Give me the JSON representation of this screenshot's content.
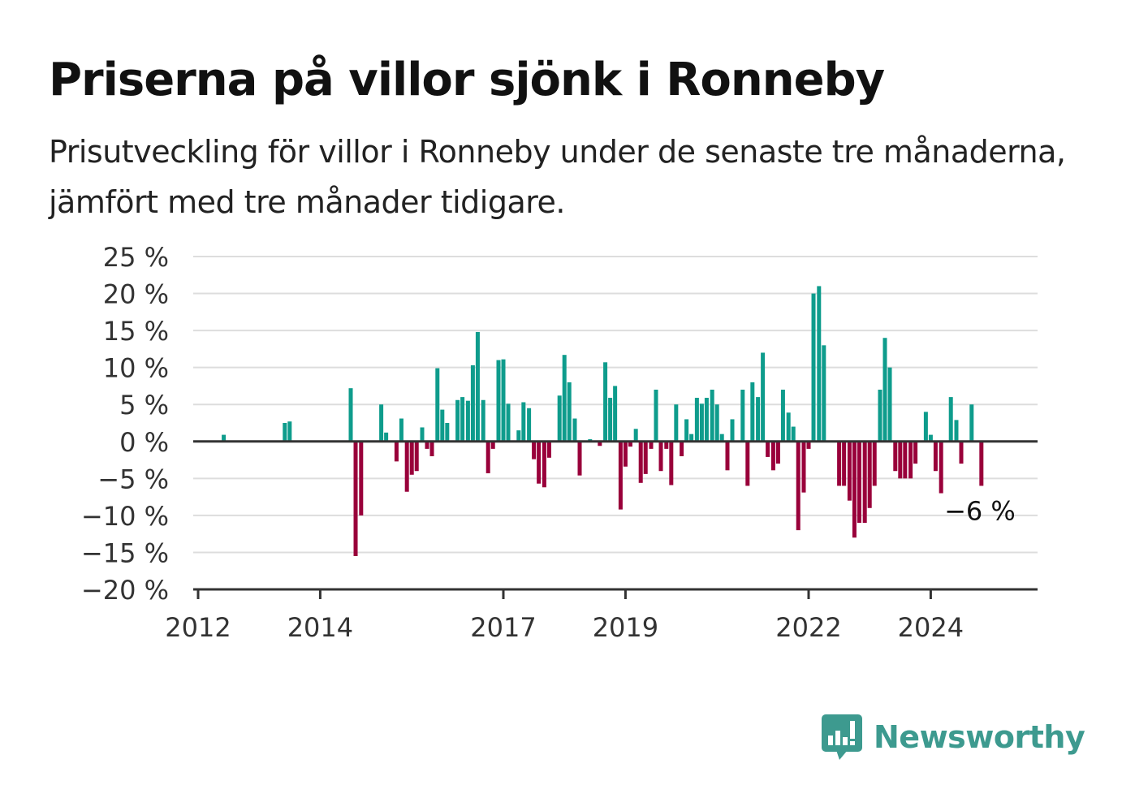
{
  "title": "Priserna på villor sjönk i Ronneby",
  "subtitle": "Prisutveckling för villor i Ronneby under de senaste tre månaderna, jämfört med tre månader tidigare.",
  "brand": {
    "name": "Newsworthy",
    "icon": "newsworthy-logo-icon",
    "color": "#3d9a8f"
  },
  "colors": {
    "positive": "#0e9c8c",
    "negative": "#99003a",
    "grid": "#dddddd",
    "axis": "#333333"
  },
  "chart_data": {
    "type": "bar",
    "title": "Priserna på villor sjönk i Ronneby",
    "ylim": [
      -20,
      25
    ],
    "yticks": [
      25,
      20,
      15,
      10,
      5,
      0,
      -5,
      -10,
      -15,
      -20
    ],
    "ytick_labels": [
      "25 %",
      "20 %",
      "15 %",
      "10 %",
      "5 %",
      "0 %",
      "−5 %",
      "−10 %",
      "−15 %",
      "−20 %"
    ],
    "xlim": [
      2011.92,
      2025.75
    ],
    "xticks": [
      2012,
      2014,
      2017,
      2019,
      2022,
      2024
    ],
    "xtick_labels": [
      "2012",
      "2014",
      "2017",
      "2019",
      "2022",
      "2024"
    ],
    "grid": true,
    "last_label": "−6 %",
    "x": [
      2012.42,
      2013.42,
      2013.5,
      2014.5,
      2014.58,
      2014.67,
      2015.0,
      2015.08,
      2015.25,
      2015.33,
      2015.42,
      2015.5,
      2015.58,
      2015.67,
      2015.75,
      2015.83,
      2015.92,
      2016.0,
      2016.08,
      2016.25,
      2016.33,
      2016.42,
      2016.5,
      2016.58,
      2016.67,
      2016.75,
      2016.83,
      2016.92,
      2017.0,
      2017.08,
      2017.17,
      2017.25,
      2017.33,
      2017.42,
      2017.5,
      2017.58,
      2017.67,
      2017.75,
      2017.92,
      2018.0,
      2018.08,
      2018.17,
      2018.25,
      2018.42,
      2018.5,
      2018.58,
      2018.67,
      2018.75,
      2018.83,
      2018.92,
      2019.0,
      2019.08,
      2019.17,
      2019.25,
      2019.33,
      2019.42,
      2019.5,
      2019.58,
      2019.67,
      2019.75,
      2019.83,
      2019.92,
      2020.0,
      2020.08,
      2020.17,
      2020.25,
      2020.33,
      2020.42,
      2020.5,
      2020.58,
      2020.67,
      2020.75,
      2020.83,
      2020.92,
      2021.0,
      2021.08,
      2021.17,
      2021.25,
      2021.33,
      2021.42,
      2021.5,
      2021.58,
      2021.67,
      2021.75,
      2021.83,
      2021.92,
      2022.0,
      2022.08,
      2022.17,
      2022.25,
      2022.5,
      2022.58,
      2022.67,
      2022.75,
      2022.83,
      2022.92,
      2023.0,
      2023.08,
      2023.17,
      2023.25,
      2023.33,
      2023.42,
      2023.5,
      2023.58,
      2023.67,
      2023.75,
      2023.83,
      2023.92,
      2024.0,
      2024.08,
      2024.17,
      2024.25,
      2024.33,
      2024.42,
      2024.5,
      2024.58,
      2024.67,
      2024.75,
      2024.83
    ],
    "values": [
      0.9,
      2.5,
      2.7,
      7.2,
      -15.5,
      -10.0,
      5.0,
      1.2,
      -2.7,
      3.1,
      -6.8,
      -4.5,
      -4.0,
      1.9,
      -1.0,
      -2.0,
      9.9,
      4.3,
      2.5,
      5.6,
      6.0,
      5.5,
      10.3,
      14.8,
      5.6,
      -4.3,
      -1.0,
      11.0,
      11.1,
      5.1,
      0.1,
      1.5,
      5.3,
      4.5,
      -2.4,
      -5.7,
      -6.2,
      -2.2,
      6.2,
      11.7,
      8.0,
      3.1,
      -4.6,
      0.3,
      -0.1,
      -0.6,
      10.7,
      5.9,
      7.5,
      -9.2,
      -3.4,
      -0.7,
      1.7,
      -5.6,
      -4.4,
      -1.0,
      7.0,
      -4.0,
      -1.0,
      -5.9,
      5.0,
      -2.0,
      3.0,
      1.0,
      5.9,
      5.1,
      5.9,
      7.0,
      5.0,
      1.0,
      -3.9,
      3.0,
      0.0,
      7.0,
      -6.0,
      8.0,
      6.0,
      12.0,
      -2.1,
      -3.9,
      -3.0,
      7.0,
      3.9,
      2.0,
      -12.0,
      -6.9,
      -1.0,
      20.0,
      21.0,
      13.0,
      -6.0,
      -6.0,
      -8.0,
      -13.0,
      -11.0,
      -11.0,
      -9.0,
      -6.0,
      7.0,
      14.0,
      10.0,
      -4.0,
      -5.0,
      -5.0,
      -5.0,
      -3.0,
      0.0,
      4.0,
      0.9,
      -4.0,
      -7.0,
      0.0,
      6.0,
      2.9,
      -3.0,
      0.0,
      5.0,
      0.0,
      -6.0
    ]
  }
}
